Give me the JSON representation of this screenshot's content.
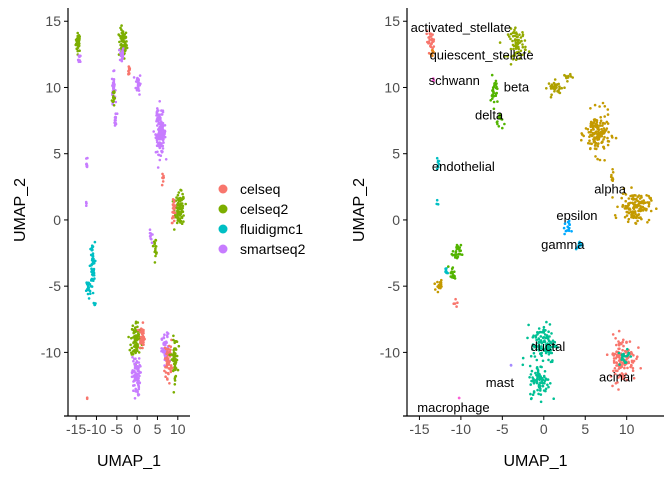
{
  "chart_data": [
    {
      "type": "scatter",
      "panel": "left",
      "xlabel": "UMAP_1",
      "ylabel": "UMAP_2",
      "xlim": [
        -17,
        13
      ],
      "ylim": [
        -14.5,
        16
      ],
      "xticks": [
        -15,
        -10,
        -5,
        0,
        5,
        10
      ],
      "xtick_labels": [
        "-15",
        "-10",
        "-5",
        "0",
        "5",
        "10"
      ],
      "yticks": [
        -10,
        -5,
        0,
        5,
        10,
        15
      ],
      "ytick_labels": [
        "-10",
        "-5",
        "0",
        "5",
        "10",
        "15"
      ],
      "grid": false,
      "legend": {
        "placement": "right",
        "entries": [
          {
            "name": "celseq",
            "color": "#F8766D"
          },
          {
            "name": "celseq2",
            "color": "#7CAE00"
          },
          {
            "name": "fluidigmc1",
            "color": "#00BFC4"
          },
          {
            "name": "smartseq2",
            "color": "#C77CFF"
          }
        ]
      },
      "blobs": [
        {
          "series": "celseq2",
          "cx": -14.5,
          "cy": 13.4,
          "rx": 0.6,
          "ry": 0.7,
          "n": 35
        },
        {
          "series": "smartseq2",
          "cx": -14.2,
          "cy": 12.1,
          "rx": 0.3,
          "ry": 0.4,
          "n": 10
        },
        {
          "series": "celseq2",
          "cx": -3.5,
          "cy": 13.3,
          "rx": 1.0,
          "ry": 1.1,
          "n": 70
        },
        {
          "series": "smartseq2",
          "cx": -3.8,
          "cy": 12.5,
          "rx": 0.5,
          "ry": 0.6,
          "n": 20
        },
        {
          "series": "celseq",
          "cx": -2.0,
          "cy": 11.3,
          "rx": 0.3,
          "ry": 0.5,
          "n": 14
        },
        {
          "series": "smartseq2",
          "cx": 0.3,
          "cy": 10.3,
          "rx": 0.6,
          "ry": 0.8,
          "n": 30
        },
        {
          "series": "smartseq2",
          "cx": -5.8,
          "cy": 10.0,
          "rx": 0.4,
          "ry": 1.1,
          "n": 30
        },
        {
          "series": "celseq2",
          "cx": -5.9,
          "cy": 9.3,
          "rx": 0.3,
          "ry": 0.8,
          "n": 15
        },
        {
          "series": "smartseq2",
          "cx": -5.3,
          "cy": 7.5,
          "rx": 0.4,
          "ry": 0.6,
          "n": 15
        },
        {
          "series": "smartseq2",
          "cx": 5.8,
          "cy": 6.5,
          "rx": 1.2,
          "ry": 1.5,
          "n": 130
        },
        {
          "series": "smartseq2",
          "cx": 5.0,
          "cy": 8.0,
          "rx": 0.4,
          "ry": 0.4,
          "n": 12
        },
        {
          "series": "smartseq2",
          "cx": -12.4,
          "cy": 4.2,
          "rx": 0.2,
          "ry": 0.6,
          "n": 8
        },
        {
          "series": "smartseq2",
          "cx": -12.5,
          "cy": 1.2,
          "rx": 0.1,
          "ry": 0.3,
          "n": 4
        },
        {
          "series": "celseq",
          "cx": 6.3,
          "cy": 3.0,
          "rx": 0.3,
          "ry": 0.5,
          "n": 8
        },
        {
          "series": "celseq2",
          "cx": 10.5,
          "cy": 0.8,
          "rx": 1.2,
          "ry": 1.2,
          "n": 90
        },
        {
          "series": "celseq",
          "cx": 9.0,
          "cy": 0.8,
          "rx": 0.5,
          "ry": 1.0,
          "n": 25
        },
        {
          "series": "celseq2",
          "cx": 4.5,
          "cy": -2.0,
          "rx": 0.5,
          "ry": 0.6,
          "n": 15
        },
        {
          "series": "smartseq2",
          "cx": 3.3,
          "cy": -1.3,
          "rx": 0.3,
          "ry": 0.5,
          "n": 10
        },
        {
          "series": "fluidigmc1",
          "cx": -11.0,
          "cy": -3.5,
          "rx": 0.6,
          "ry": 1.8,
          "n": 55
        },
        {
          "series": "fluidigmc1",
          "cx": -12.0,
          "cy": -5.2,
          "rx": 0.5,
          "ry": 0.8,
          "n": 25
        },
        {
          "series": "fluidigmc1",
          "cx": -10.5,
          "cy": -6.3,
          "rx": 0.3,
          "ry": 0.4,
          "n": 6
        },
        {
          "series": "celseq2",
          "cx": -0.2,
          "cy": -9.0,
          "rx": 1.3,
          "ry": 1.4,
          "n": 90
        },
        {
          "series": "celseq",
          "cx": 1.2,
          "cy": -8.8,
          "rx": 0.7,
          "ry": 0.9,
          "n": 40
        },
        {
          "series": "smartseq2",
          "cx": -0.3,
          "cy": -11.8,
          "rx": 1.0,
          "ry": 1.5,
          "n": 80
        },
        {
          "series": "smartseq2",
          "cx": 7.0,
          "cy": -10.0,
          "rx": 0.9,
          "ry": 1.4,
          "n": 60
        },
        {
          "series": "celseq",
          "cx": 7.7,
          "cy": -10.5,
          "rx": 0.9,
          "ry": 1.4,
          "n": 55
        },
        {
          "series": "celseq2",
          "cx": 9.2,
          "cy": -10.5,
          "rx": 0.8,
          "ry": 1.6,
          "n": 55
        },
        {
          "series": "celseq",
          "cx": -12.3,
          "cy": -13.5,
          "rx": 0.1,
          "ry": 0.1,
          "n": 2
        }
      ]
    },
    {
      "type": "scatter",
      "panel": "right",
      "xlabel": "UMAP_1",
      "ylabel": "UMAP_2",
      "xlim": [
        -16.5,
        14.5
      ],
      "ylim": [
        -14.5,
        16
      ],
      "xticks": [
        -15,
        -10,
        -5,
        0,
        5,
        10
      ],
      "xtick_labels": [
        "-15",
        "-10",
        "-5",
        "0",
        "5",
        "10"
      ],
      "yticks": [
        -10,
        -5,
        0,
        5,
        10,
        15
      ],
      "ytick_labels": [
        "-10",
        "-5",
        "0",
        "5",
        "10",
        "15"
      ],
      "grid": false,
      "clusters": [
        {
          "name": "activated_stellate",
          "color": "#F8766D",
          "label_x": -10.0,
          "label_y": 14.5
        },
        {
          "name": "quiescent_stellate",
          "color": "#93AA00",
          "label_x": -7.5,
          "label_y": 12.4
        },
        {
          "name": "schwann",
          "color": "#E7861B",
          "label_x": -10.8,
          "label_y": 10.5
        },
        {
          "name": "beta",
          "color": "#C49A00",
          "label_x": -3.3,
          "label_y": 10.0
        },
        {
          "name": "delta",
          "color": "#53B400",
          "label_x": -6.6,
          "label_y": 7.9
        },
        {
          "name": "endothelial",
          "color": "#00BFC4",
          "label_x": -9.7,
          "label_y": 4.0
        },
        {
          "name": "alpha",
          "color": "#C49A00",
          "label_x": 8.0,
          "label_y": 2.3
        },
        {
          "name": "epsilon",
          "color": "#00A9FF",
          "label_x": 4.0,
          "label_y": 0.3
        },
        {
          "name": "gamma",
          "color": "#00B6EB",
          "label_x": 2.3,
          "label_y": -1.9
        },
        {
          "name": "ductal",
          "color": "#00C094",
          "label_x": 0.5,
          "label_y": -9.6
        },
        {
          "name": "acinar",
          "color": "#F8766D",
          "label_x": 8.8,
          "label_y": -11.9
        },
        {
          "name": "mast",
          "color": "#A58AFF",
          "label_x": -5.3,
          "label_y": -12.3
        },
        {
          "name": "macrophage",
          "color": "#FB61D7",
          "label_x": -10.9,
          "label_y": -14.2
        }
      ],
      "blobs": [
        {
          "cluster": "activated_stellate",
          "cx": -13.7,
          "cy": 13.5,
          "rx": 0.5,
          "ry": 0.7,
          "n": 30,
          "color": "#F8766D"
        },
        {
          "cluster": "schwann",
          "cx": -13.3,
          "cy": 12.6,
          "rx": 0.3,
          "ry": 0.3,
          "n": 8,
          "color": "#E7861B"
        },
        {
          "cluster": "schwann",
          "cx": -13.3,
          "cy": 10.5,
          "rx": 0.1,
          "ry": 0.3,
          "n": 4,
          "color": "#FB61D7"
        },
        {
          "cluster": "quiescent_stellate",
          "cx": -3.2,
          "cy": 13.3,
          "rx": 1.1,
          "ry": 1.1,
          "n": 70,
          "color": "#93AA00"
        },
        {
          "cluster": "beta",
          "cx": 1.5,
          "cy": 10.0,
          "rx": 1.0,
          "ry": 0.5,
          "n": 35,
          "color": "#AFA100"
        },
        {
          "cluster": "beta",
          "cx": 2.8,
          "cy": 10.8,
          "rx": 0.5,
          "ry": 0.3,
          "n": 10,
          "color": "#AFA100"
        },
        {
          "cluster": "delta",
          "cx": -6.0,
          "cy": 9.7,
          "rx": 0.4,
          "ry": 1.1,
          "n": 30,
          "color": "#53B400"
        },
        {
          "cluster": "delta",
          "cx": -5.3,
          "cy": 7.5,
          "rx": 0.4,
          "ry": 0.7,
          "n": 15,
          "color": "#53B400"
        },
        {
          "cluster": "beta",
          "cx": 6.5,
          "cy": 6.5,
          "rx": 1.5,
          "ry": 1.6,
          "n": 150,
          "color": "#C49A00"
        },
        {
          "cluster": "endothelial",
          "cx": -12.8,
          "cy": 4.2,
          "rx": 0.15,
          "ry": 0.6,
          "n": 8,
          "color": "#00BFC4"
        },
        {
          "cluster": "endothelial",
          "cx": -12.8,
          "cy": 1.3,
          "rx": 0.1,
          "ry": 0.2,
          "n": 3,
          "color": "#00BFC4"
        },
        {
          "cluster": "alpha",
          "cx": 11.0,
          "cy": 1.0,
          "rx": 1.8,
          "ry": 1.1,
          "n": 140,
          "color": "#C49A00"
        },
        {
          "cluster": "alpha",
          "cx": 8.2,
          "cy": 3.2,
          "rx": 0.3,
          "ry": 0.6,
          "n": 8,
          "color": "#C49A00"
        },
        {
          "cluster": "epsilon",
          "cx": 2.8,
          "cy": -0.6,
          "rx": 0.4,
          "ry": 0.5,
          "n": 14,
          "color": "#00A9FF"
        },
        {
          "cluster": "gamma",
          "cx": 4.3,
          "cy": -2.0,
          "rx": 0.4,
          "ry": 0.4,
          "n": 12,
          "color": "#00B6EB"
        },
        {
          "cluster": "delta",
          "cx": -10.5,
          "cy": -2.5,
          "rx": 0.5,
          "ry": 0.6,
          "n": 25,
          "color": "#53B400"
        },
        {
          "cluster": "delta",
          "cx": -11.0,
          "cy": -4.0,
          "rx": 0.4,
          "ry": 0.6,
          "n": 15,
          "color": "#53B400"
        },
        {
          "cluster": "endothelial",
          "cx": -11.8,
          "cy": -4.0,
          "rx": 0.2,
          "ry": 0.4,
          "n": 8,
          "color": "#00BFC4"
        },
        {
          "cluster": "beta",
          "cx": -12.6,
          "cy": -4.9,
          "rx": 0.6,
          "ry": 0.5,
          "n": 20,
          "color": "#C49A00"
        },
        {
          "cluster": "activated_stellate",
          "cx": -10.5,
          "cy": -6.3,
          "rx": 0.3,
          "ry": 0.3,
          "n": 5,
          "color": "#F8766D"
        },
        {
          "cluster": "ductal",
          "cx": 0.0,
          "cy": -9.3,
          "rx": 1.5,
          "ry": 1.5,
          "n": 120,
          "color": "#00C094"
        },
        {
          "cluster": "ductal",
          "cx": -0.5,
          "cy": -12.2,
          "rx": 1.2,
          "ry": 1.2,
          "n": 80,
          "color": "#00C094"
        },
        {
          "cluster": "acinar",
          "cx": 9.5,
          "cy": -10.5,
          "rx": 1.6,
          "ry": 1.7,
          "n": 130,
          "color": "#F8766D"
        },
        {
          "cluster": "acinar",
          "cx": 9.7,
          "cy": -10.3,
          "rx": 0.6,
          "ry": 0.7,
          "n": 20,
          "color": "#00C094"
        },
        {
          "cluster": "mast",
          "cx": -4.0,
          "cy": -11.0,
          "rx": 0.1,
          "ry": 0.1,
          "n": 2,
          "color": "#A58AFF"
        },
        {
          "cluster": "macrophage",
          "cx": -10.2,
          "cy": -13.4,
          "rx": 0.1,
          "ry": 0.1,
          "n": 2,
          "color": "#FB61D7"
        }
      ]
    }
  ]
}
